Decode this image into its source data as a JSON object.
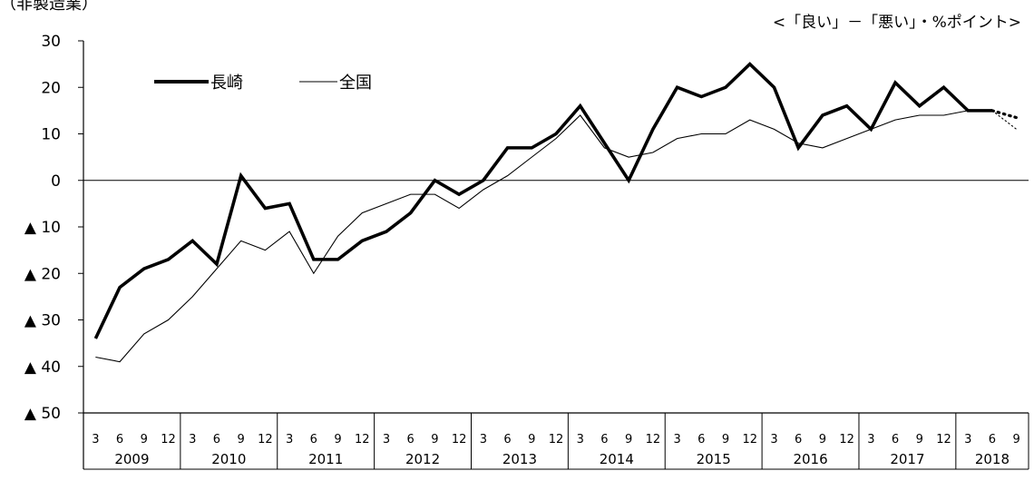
{
  "header": {
    "title": "（非製造業）",
    "unit": "<「良い」－「悪い」・%ポイント>"
  },
  "chart_data": {
    "type": "line",
    "title": "（非製造業）",
    "ylabel": "",
    "xlabel": "",
    "ylim": [
      -50,
      30
    ],
    "ytick_labels": [
      "30",
      "20",
      "10",
      "0",
      "▲ 10",
      "▲ 20",
      "▲ 30",
      "▲ 40",
      "▲ 50"
    ],
    "ytick_values": [
      30,
      20,
      10,
      0,
      -10,
      -20,
      -30,
      -40,
      -50
    ],
    "years": [
      "2009",
      "2010",
      "2011",
      "2012",
      "2013",
      "2014",
      "2015",
      "2016",
      "2017",
      "2018"
    ],
    "quarters": [
      "3",
      "6",
      "9",
      "12"
    ],
    "quarters_last_year": [
      "3",
      "6",
      "9"
    ],
    "legend_position": "top-left",
    "series": [
      {
        "name": "長崎",
        "color": "#000000",
        "values": [
          -34,
          -23,
          -19,
          -17,
          -13,
          -18,
          1,
          -6,
          -5,
          -17,
          -17,
          -13,
          -11,
          -7,
          0,
          -3,
          0,
          7,
          7,
          10,
          16,
          8,
          0,
          11,
          20,
          18,
          20,
          25,
          20,
          7,
          14,
          16,
          11,
          21,
          16,
          20,
          15,
          15
        ],
        "forecast": [
          15,
          13.5
        ]
      },
      {
        "name": "全国",
        "color": "#000000",
        "values": [
          -38,
          -39,
          -33,
          -30,
          -25,
          -19,
          -13,
          -15,
          -11,
          -20,
          -12,
          -7,
          -5,
          -3,
          -3,
          -6,
          -2,
          1,
          5,
          9,
          14,
          7,
          5,
          6,
          9,
          10,
          10,
          13,
          11,
          8,
          7,
          9,
          11,
          13,
          14,
          14,
          15,
          15
        ],
        "forecast": [
          15,
          11
        ]
      }
    ]
  }
}
